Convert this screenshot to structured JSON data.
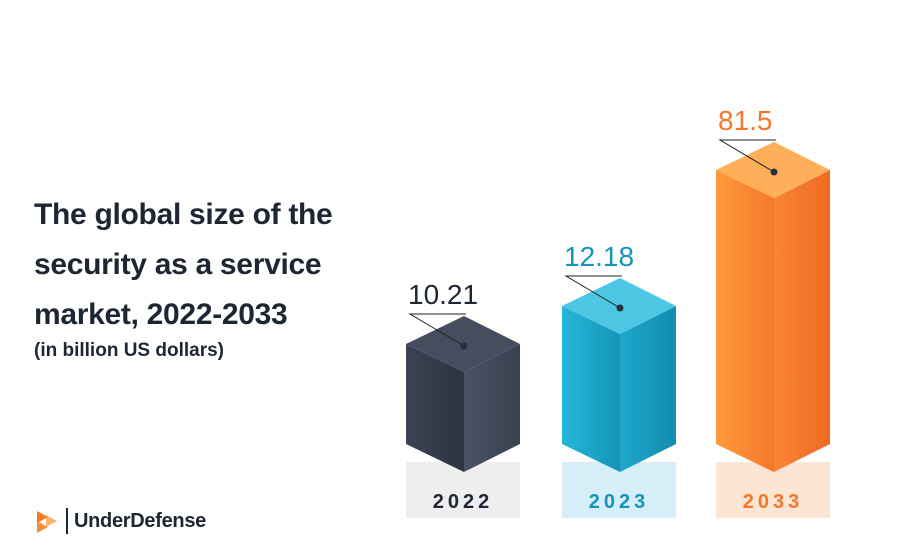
{
  "title": "The global size of the security as a service market, 2022-2033",
  "subtitle": "(in billion US dollars)",
  "brand": {
    "name": "UnderDefense"
  },
  "colors": {
    "bar_2022": "#3b4253",
    "bar_2023": "#1fb0d2",
    "bar_2033": "#fb8a32",
    "text_dark": "#1f2633"
  },
  "chart_data": {
    "type": "bar",
    "categories": [
      "2022",
      "2023",
      "2033"
    ],
    "values": [
      10.21,
      12.18,
      81.5
    ],
    "value_labels": [
      "10.21",
      "12.18",
      "81.5"
    ],
    "title": "The global size of the security as a service market, 2022-2033",
    "ylabel": "(in billion US dollars)",
    "xlabel": "",
    "grid": false,
    "legend": "none"
  }
}
